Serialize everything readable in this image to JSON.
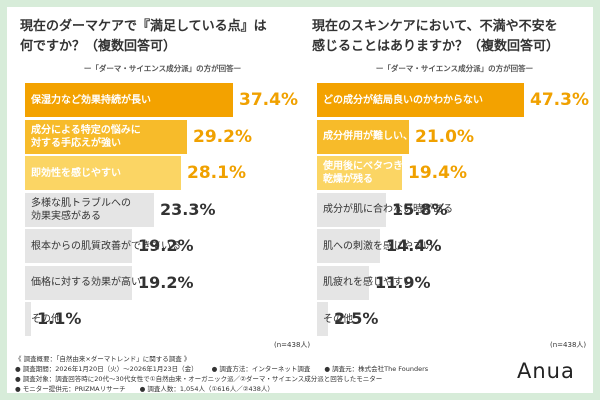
{
  "chart_data": [
    {
      "type": "bar",
      "orientation": "horizontal",
      "title_lines": [
        "現在のダーマケアで『満足している点』は",
        "何ですか？（複数回答可）"
      ],
      "subtitle": "ー「ダーマ・サイエンス成分派」の方が回答ー",
      "n_label": "(n=438人)",
      "xlim": [
        0,
        45
      ],
      "highlight_colors": [
        "#f3a200",
        "#f7bb2a",
        "#fbd564"
      ],
      "base_color": "#e5e5e5",
      "categories": [
        [
          "保湿力など効果持続が長い"
        ],
        [
          "成分による特定の悩みに",
          "対する手応えが強い"
        ],
        [
          "即効性を感じやすい"
        ],
        [
          "多様な肌トラブルへの",
          "効果実感がある"
        ],
        [
          "根本からの肌質改善ができている"
        ],
        [
          "価格に対する効果が高い"
        ],
        [
          "その他"
        ]
      ],
      "values": [
        37.4,
        29.2,
        28.1,
        23.3,
        19.2,
        19.2,
        1.1
      ],
      "value_labels": [
        "37.4%",
        "29.2%",
        "28.1%",
        "23.3%",
        "19.2%",
        "19.2%",
        "1.1%"
      ]
    },
    {
      "type": "bar",
      "orientation": "horizontal",
      "title_lines": [
        "現在のスキンケアにおいて、不満や不安を",
        "感じることはありますか？（複数回答可）"
      ],
      "subtitle": "ー「ダーマ・サイエンス成分派」の方が回答ー",
      "n_label": "(n=438人)",
      "xlim": [
        0,
        57
      ],
      "highlight_colors": [
        "#f3a200",
        "#f7bb2a",
        "#fbd564"
      ],
      "base_color": "#e5e5e5",
      "categories": [
        [
          "どの成分が結局良いのかわからない"
        ],
        [
          "成分併用が難しい、不安"
        ],
        [
          "使用後にベタつきや",
          "乾燥が残る"
        ],
        [
          "成分が肌に合わない時がある"
        ],
        [
          "肌への刺激を感じやすい"
        ],
        [
          "肌疲れを感じやすい"
        ],
        [
          "その他"
        ]
      ],
      "values": [
        47.3,
        21.0,
        19.4,
        15.8,
        14.4,
        11.9,
        2.5
      ],
      "value_labels": [
        "47.3%",
        "21.0%",
        "19.4%",
        "15.8%",
        "14.4%",
        "11.9%",
        "2.5%"
      ]
    }
  ],
  "footer": {
    "line1": "《 調査概要：「自然由来×ダーマトレンド」に関する調査 》",
    "period": "● 調査期間：2026年1月20日（火）〜2026年1月23日（金）",
    "method": "● 調査方法：インターネット調査",
    "organizer": "● 調査元：株式会社The Founders",
    "target": "● 調査対象：調査回答時に20代〜30代女性で①自然由来・オーガニック派／②ダーマ・サイエンス成分派と回答したモニター",
    "provider": "● モニター提供元：PRIZMAリサーチ",
    "count": "● 調査人数：1,054人（①616人／②438人）"
  },
  "logo": "Anua"
}
